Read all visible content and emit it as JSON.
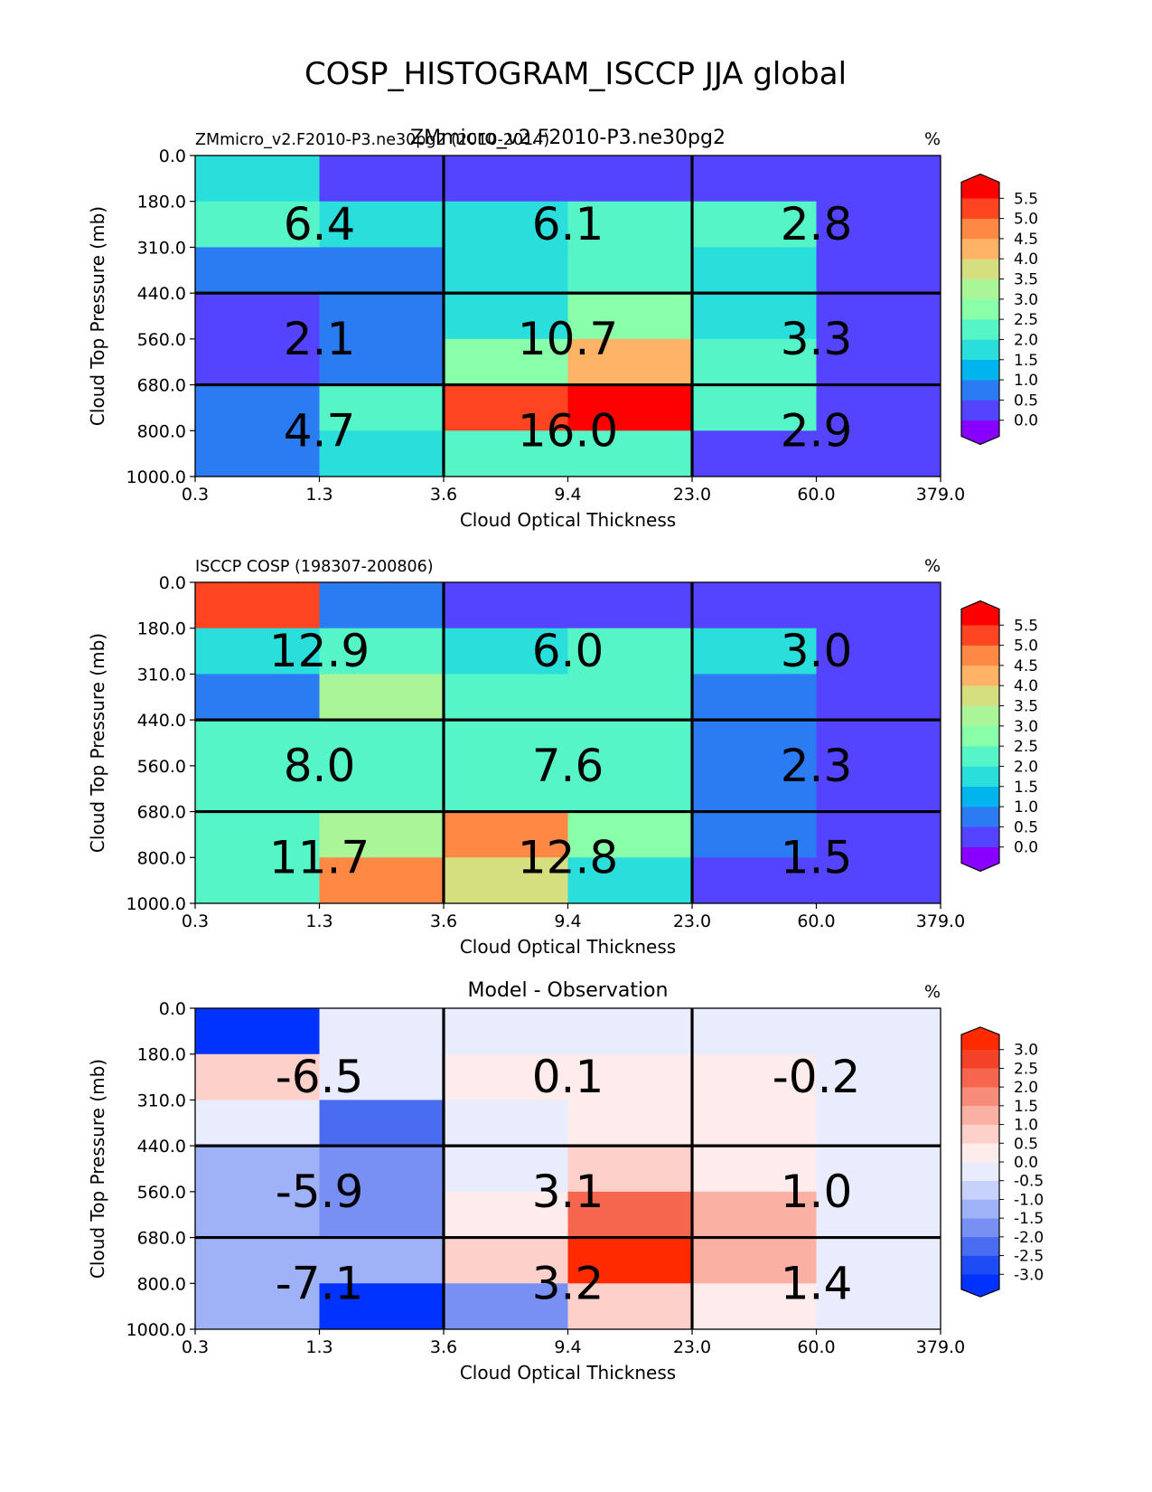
{
  "figure": {
    "suptitle": "COSP_HISTOGRAM_ISCCP JJA global"
  },
  "chart_data": [
    {
      "type": "heatmap",
      "title_left": "ZMmicro_v2.F2010-P3.ne30pg2 (2010-2014)",
      "title_center": "ZMmicro_v2.F2010-P3.ne30pg2",
      "units": "%",
      "xlabel": "Cloud Optical Thickness",
      "ylabel": "Cloud Top Pressure (mb)",
      "x_ticks": [
        "0.3",
        "1.3",
        "3.6",
        "9.4",
        "23.0",
        "60.0",
        "379.0"
      ],
      "y_ticks": [
        "0.0",
        "180.0",
        "310.0",
        "440.0",
        "560.0",
        "680.0",
        "800.0",
        "1000.0"
      ],
      "values": [
        [
          1.5,
          0.3,
          0.3,
          0.3,
          0.3,
          0.3
        ],
        [
          2.3,
          1.5,
          1.5,
          2.0,
          2.0,
          0.3
        ],
        [
          0.8,
          0.8,
          1.5,
          2.0,
          1.5,
          0.3
        ],
        [
          0.3,
          0.8,
          1.5,
          2.8,
          1.5,
          0.3
        ],
        [
          0.3,
          0.8,
          2.8,
          4.3,
          2.0,
          0.3
        ],
        [
          0.8,
          2.3,
          5.3,
          5.8,
          2.3,
          0.3
        ],
        [
          0.8,
          1.5,
          2.3,
          2.0,
          0.3,
          0.3
        ]
      ],
      "block_labels": [
        [
          "6.4",
          "6.1",
          "2.8"
        ],
        [
          "2.1",
          "10.7",
          "3.3"
        ],
        [
          "4.7",
          "16.0",
          "2.9"
        ]
      ],
      "colorbar": {
        "ticks": [
          "0.0",
          "0.5",
          "1.0",
          "1.5",
          "2.0",
          "2.5",
          "3.0",
          "3.5",
          "4.0",
          "4.5",
          "5.0",
          "5.5"
        ],
        "levels": [
          0.0,
          0.5,
          1.0,
          1.5,
          2.0,
          2.5,
          3.0,
          3.5,
          4.0,
          4.5,
          5.0,
          5.5
        ],
        "colors": [
          "#8800ff",
          "#5544ff",
          "#2b7bf2",
          "#00b4ee",
          "#2adedc",
          "#55f5c8",
          "#88ffa8",
          "#aaf598",
          "#d5df80",
          "#ffb366",
          "#ff8844",
          "#ff4422",
          "#ff0000"
        ]
      }
    },
    {
      "type": "heatmap",
      "title_left": "ISCCP COSP (198307-200806)",
      "title_center": "",
      "units": "%",
      "xlabel": "Cloud Optical Thickness",
      "ylabel": "Cloud Top Pressure (mb)",
      "x_ticks": [
        "0.3",
        "1.3",
        "3.6",
        "9.4",
        "23.0",
        "60.0",
        "379.0"
      ],
      "y_ticks": [
        "0.0",
        "180.0",
        "310.0",
        "440.0",
        "560.0",
        "680.0",
        "800.0",
        "1000.0"
      ],
      "values": [
        [
          5.3,
          0.8,
          0.3,
          0.3,
          0.3,
          0.3
        ],
        [
          1.5,
          2.0,
          1.5,
          2.0,
          1.5,
          0.3
        ],
        [
          0.8,
          3.3,
          2.0,
          2.0,
          0.8,
          0.3
        ],
        [
          2.0,
          2.3,
          2.0,
          2.0,
          0.8,
          0.3
        ],
        [
          2.0,
          2.3,
          2.3,
          2.0,
          0.8,
          0.3
        ],
        [
          2.0,
          3.3,
          4.8,
          2.8,
          0.8,
          0.3
        ],
        [
          2.0,
          4.8,
          3.8,
          1.5,
          0.3,
          0.3
        ]
      ],
      "block_labels": [
        [
          "12.9",
          "6.0",
          "3.0"
        ],
        [
          "8.0",
          "7.6",
          "2.3"
        ],
        [
          "11.7",
          "12.8",
          "1.5"
        ]
      ],
      "colorbar": {
        "ticks": [
          "0.0",
          "0.5",
          "1.0",
          "1.5",
          "2.0",
          "2.5",
          "3.0",
          "3.5",
          "4.0",
          "4.5",
          "5.0",
          "5.5"
        ],
        "levels": [
          0.0,
          0.5,
          1.0,
          1.5,
          2.0,
          2.5,
          3.0,
          3.5,
          4.0,
          4.5,
          5.0,
          5.5
        ],
        "colors": [
          "#8800ff",
          "#5544ff",
          "#2b7bf2",
          "#00b4ee",
          "#2adedc",
          "#55f5c8",
          "#88ffa8",
          "#aaf598",
          "#d5df80",
          "#ffb366",
          "#ff8844",
          "#ff4422",
          "#ff0000"
        ]
      }
    },
    {
      "type": "heatmap",
      "title_left": "",
      "title_center": "Model - Observation",
      "units": "%",
      "xlabel": "Cloud Optical Thickness",
      "ylabel": "Cloud Top Pressure (mb)",
      "x_ticks": [
        "0.3",
        "1.3",
        "3.6",
        "9.4",
        "23.0",
        "60.0",
        "379.0"
      ],
      "y_ticks": [
        "0.0",
        "180.0",
        "310.0",
        "440.0",
        "560.0",
        "680.0",
        "800.0",
        "1000.0"
      ],
      "values": [
        [
          -3.2,
          -0.2,
          -0.2,
          -0.2,
          -0.2,
          -0.2
        ],
        [
          0.7,
          -0.2,
          0.2,
          0.2,
          0.2,
          -0.2
        ],
        [
          -0.2,
          -2.3,
          -0.2,
          0.2,
          0.2,
          -0.2
        ],
        [
          -1.2,
          -1.7,
          -0.2,
          0.7,
          0.2,
          -0.2
        ],
        [
          -1.2,
          -1.7,
          0.2,
          2.3,
          1.2,
          -0.2
        ],
        [
          -1.2,
          -1.2,
          0.7,
          3.2,
          1.2,
          -0.2
        ],
        [
          -1.2,
          -3.2,
          -1.7,
          0.7,
          0.2,
          -0.2
        ]
      ],
      "block_labels": [
        [
          "-6.5",
          "0.1",
          "-0.2"
        ],
        [
          "-5.9",
          "3.1",
          "1.0"
        ],
        [
          "-7.1",
          "3.2",
          "1.4"
        ]
      ],
      "colorbar": {
        "ticks": [
          "-3.0",
          "-2.5",
          "-2.0",
          "-1.5",
          "-1.0",
          "-0.5",
          "0.0",
          "0.5",
          "1.0",
          "1.5",
          "2.0",
          "2.5",
          "3.0"
        ],
        "levels": [
          -3.0,
          -2.5,
          -2.0,
          -1.5,
          -1.0,
          -0.5,
          0.0,
          0.5,
          1.0,
          1.5,
          2.0,
          2.5,
          3.0
        ],
        "colors": [
          "#0033ff",
          "#1f4bf5",
          "#4a6cf0",
          "#7890f3",
          "#a0b2f7",
          "#c6d2fb",
          "#e8ecfc",
          "#fdeceb",
          "#fdd0ca",
          "#fbb0a4",
          "#f88c7a",
          "#f6664e",
          "#f44228",
          "#ff2a00"
        ]
      }
    }
  ]
}
